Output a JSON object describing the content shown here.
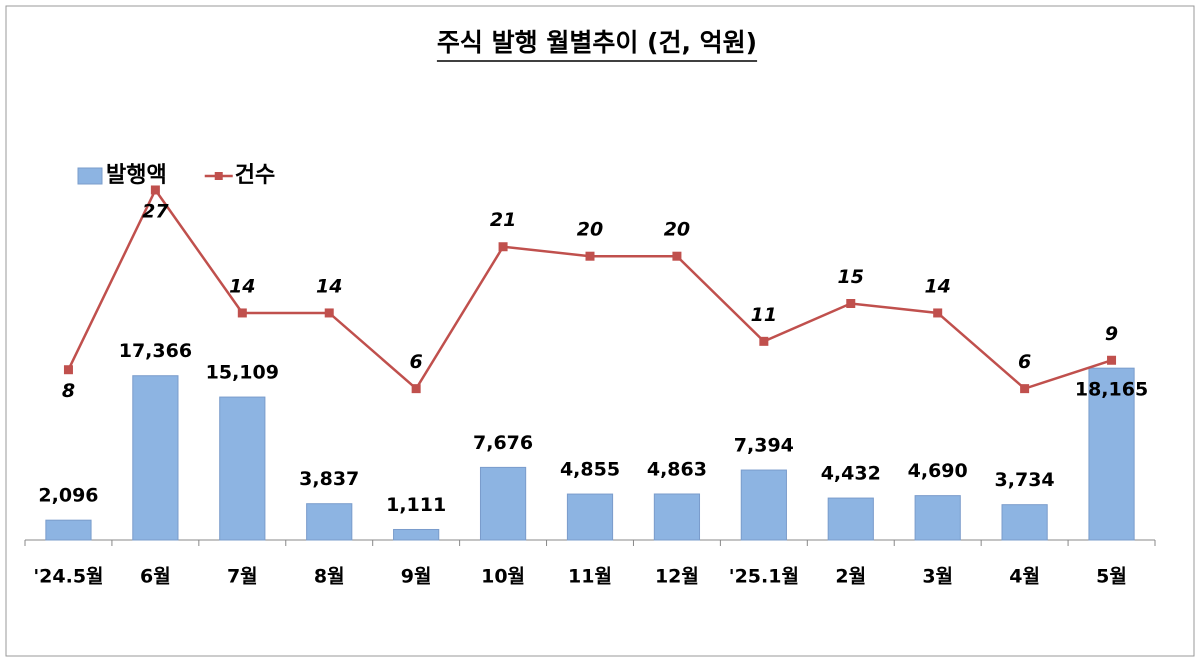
{
  "chart_data": {
    "type": "bar",
    "title": "주식 발행 월별추이 (건, 억원)",
    "categories": [
      "'24.5월",
      "6월",
      "7월",
      "8월",
      "9월",
      "10월",
      "11월",
      "12월",
      "'25.1월",
      "2월",
      "3월",
      "4월",
      "5월"
    ],
    "series": [
      {
        "name": "발행액",
        "type": "bar",
        "color": "#8db4e2",
        "values": [
          2096,
          17366,
          15109,
          3837,
          1111,
          7676,
          4855,
          4863,
          7394,
          4432,
          4690,
          3734,
          18165
        ],
        "value_labels": [
          "2,096",
          "17,366",
          "15,109",
          "3,837",
          "1,111",
          "7,676",
          "4,855",
          "4,863",
          "7,394",
          "4,432",
          "4,690",
          "3,734",
          "18,165"
        ]
      },
      {
        "name": "건수",
        "type": "line",
        "axis": "y2",
        "color": "#c0504d",
        "values": [
          8,
          27,
          14,
          14,
          6,
          21,
          20,
          20,
          11,
          15,
          14,
          6,
          9
        ]
      }
    ],
    "ylim": [
      0,
      50000
    ],
    "y2lim": [
      -10,
      40
    ],
    "legend": "top-left"
  }
}
